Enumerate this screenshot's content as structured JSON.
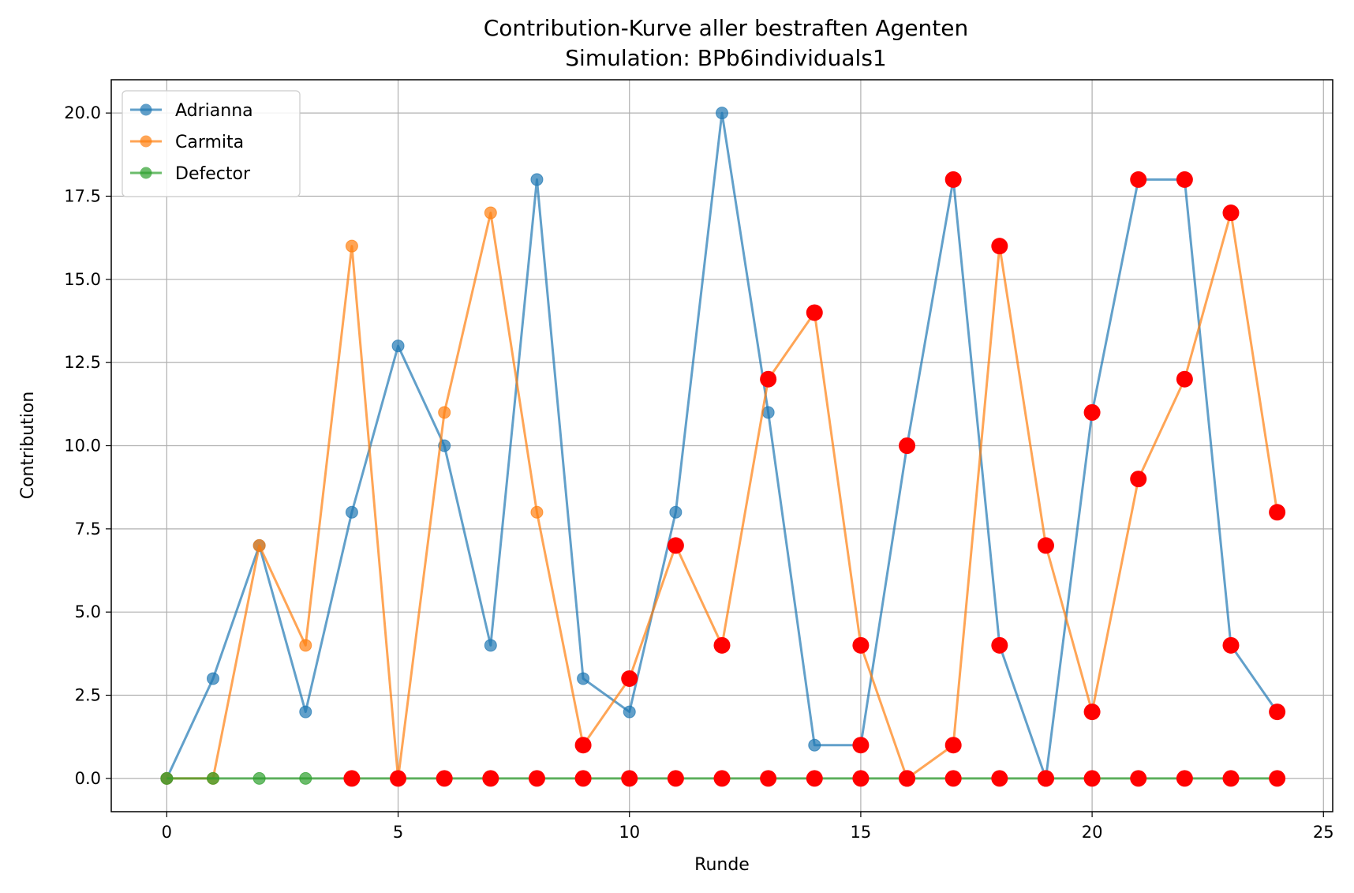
{
  "chart_data": {
    "type": "line",
    "title": "Contribution-Kurve aller bestraften Agenten",
    "subtitle": "Simulation: BPb6individuals1",
    "xlabel": "Runde",
    "ylabel": "Contribution",
    "xlim": [
      -1.2,
      25.2
    ],
    "ylim": [
      -1.0,
      21.0
    ],
    "xticks": [
      0,
      5,
      10,
      15,
      20,
      25
    ],
    "yticks": [
      0.0,
      2.5,
      5.0,
      7.5,
      10.0,
      12.5,
      15.0,
      17.5,
      20.0
    ],
    "grid": true,
    "legend_position": "upper-left",
    "x": [
      0,
      1,
      2,
      3,
      4,
      5,
      6,
      7,
      8,
      9,
      10,
      11,
      12,
      13,
      14,
      15,
      16,
      17,
      18,
      19,
      20,
      21,
      22,
      23,
      24
    ],
    "series": [
      {
        "name": "Adrianna",
        "color": "#1f77b4",
        "values": [
          0,
          3,
          7,
          2,
          8,
          13,
          10,
          4,
          18,
          3,
          2,
          8,
          20,
          11,
          1,
          1,
          10,
          18,
          4,
          0,
          11,
          18,
          18,
          4,
          2
        ],
        "punished": [
          false,
          false,
          false,
          false,
          false,
          false,
          false,
          false,
          false,
          false,
          false,
          false,
          false,
          false,
          false,
          true,
          true,
          true,
          true,
          true,
          true,
          true,
          true,
          true,
          true
        ]
      },
      {
        "name": "Carmita",
        "color": "#ff7f0e",
        "values": [
          0,
          0,
          7,
          4,
          16,
          0,
          11,
          17,
          8,
          1,
          3,
          7,
          4,
          12,
          14,
          4,
          0,
          1,
          16,
          7,
          2,
          9,
          12,
          17,
          8
        ],
        "punished": [
          false,
          false,
          false,
          false,
          false,
          false,
          false,
          false,
          false,
          true,
          true,
          true,
          true,
          true,
          true,
          true,
          true,
          true,
          true,
          true,
          true,
          true,
          true,
          true,
          true
        ]
      },
      {
        "name": "Defector",
        "color": "#2ca02c",
        "values": [
          0,
          0,
          0,
          0,
          0,
          0,
          0,
          0,
          0,
          0,
          0,
          0,
          0,
          0,
          0,
          0,
          0,
          0,
          0,
          0,
          0,
          0,
          0,
          0,
          0
        ],
        "punished": [
          false,
          false,
          false,
          false,
          true,
          true,
          true,
          true,
          true,
          true,
          true,
          true,
          true,
          true,
          true,
          true,
          true,
          true,
          true,
          true,
          true,
          true,
          true,
          true,
          true
        ]
      }
    ],
    "punish_marker_color": "#ff0000"
  }
}
